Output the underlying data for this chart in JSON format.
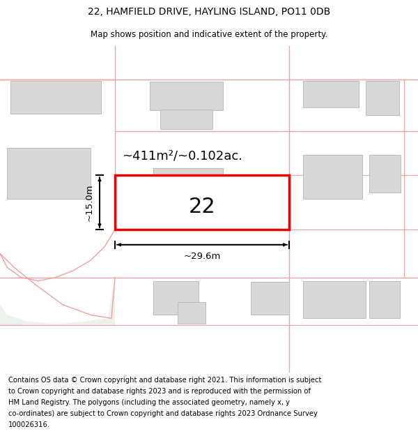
{
  "title": "22, HAMFIELD DRIVE, HAYLING ISLAND, PO11 0DB",
  "subtitle": "Map shows position and indicative extent of the property.",
  "title_fontsize": 10,
  "subtitle_fontsize": 8.5,
  "footer_text": "Contains OS data © Crown copyright and database right 2021. This information is subject to Crown copyright and database rights 2023 and is reproduced with the permission of HM Land Registry. The polygons (including the associated geometry, namely x, y co-ordinates) are subject to Crown copyright and database rights 2023 Ordnance Survey 100026316.",
  "footer_fontsize": 7.2,
  "map_bg": "#ffffff",
  "plot_border_color": "#ee0000",
  "road_color": "#f0a0a0",
  "building_fill": "#d8d8d8",
  "building_edge": "#bbbbbb",
  "green_area_fill": "#eaf2ea",
  "area_label": "~411m²/~0.102ac.",
  "dim_label_width": "~29.6m",
  "dim_label_height": "~15.0m",
  "plot_number": "22"
}
